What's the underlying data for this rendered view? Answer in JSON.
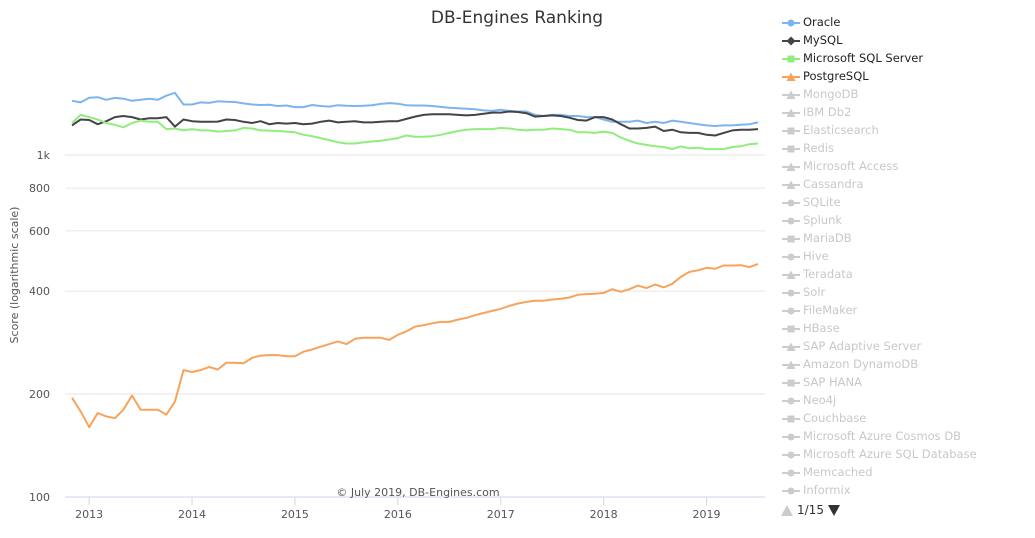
{
  "chart_data": {
    "type": "line",
    "title": "DB-Engines Ranking",
    "ylabel": "Score (logarithmic scale)",
    "yscale": "log",
    "ylim": [
      100,
      2000
    ],
    "yticks": [
      100,
      200,
      400,
      600,
      800,
      1000
    ],
    "ytick_labels": [
      "100",
      "200",
      "400",
      "600",
      "800",
      "1k"
    ],
    "xticks": [
      "2013",
      "2014",
      "2015",
      "2016",
      "2017",
      "2018",
      "2019"
    ],
    "xlim": [
      "2012-11",
      "2019-07"
    ],
    "grid": true,
    "legend_placement": "right",
    "credit": "© July 2019, DB-Engines.com",
    "x": [
      "2012-11",
      "2012-12",
      "2013-01",
      "2013-02",
      "2013-03",
      "2013-04",
      "2013-05",
      "2013-06",
      "2013-07",
      "2013-08",
      "2013-09",
      "2013-10",
      "2013-11",
      "2013-12",
      "2014-01",
      "2014-02",
      "2014-03",
      "2014-04",
      "2014-05",
      "2014-06",
      "2014-07",
      "2014-08",
      "2014-09",
      "2014-10",
      "2014-11",
      "2014-12",
      "2015-01",
      "2015-02",
      "2015-03",
      "2015-04",
      "2015-05",
      "2015-06",
      "2015-07",
      "2015-08",
      "2015-09",
      "2015-10",
      "2015-11",
      "2015-12",
      "2016-01",
      "2016-02",
      "2016-03",
      "2016-04",
      "2016-05",
      "2016-06",
      "2016-07",
      "2016-08",
      "2016-09",
      "2016-10",
      "2016-11",
      "2016-12",
      "2017-01",
      "2017-02",
      "2017-03",
      "2017-04",
      "2017-05",
      "2017-06",
      "2017-07",
      "2017-08",
      "2017-09",
      "2017-10",
      "2017-11",
      "2017-12",
      "2018-01",
      "2018-02",
      "2018-03",
      "2018-04",
      "2018-05",
      "2018-06",
      "2018-07",
      "2018-08",
      "2018-09",
      "2018-10",
      "2018-11",
      "2018-12",
      "2019-01",
      "2019-02",
      "2019-03",
      "2019-04",
      "2019-05",
      "2019-06",
      "2019-07"
    ],
    "series": [
      {
        "name": "Oracle",
        "color": "#7cb5ec",
        "marker": "circle",
        "visible": true,
        "values": [
          1440,
          1425,
          1470,
          1475,
          1450,
          1468,
          1460,
          1440,
          1450,
          1460,
          1450,
          1490,
          1520,
          1405,
          1405,
          1425,
          1420,
          1435,
          1430,
          1428,
          1415,
          1405,
          1400,
          1402,
          1390,
          1395,
          1380,
          1380,
          1400,
          1390,
          1385,
          1398,
          1393,
          1390,
          1392,
          1398,
          1410,
          1418,
          1412,
          1398,
          1395,
          1395,
          1390,
          1382,
          1375,
          1370,
          1365,
          1360,
          1350,
          1345,
          1355,
          1345,
          1340,
          1340,
          1310,
          1300,
          1310,
          1310,
          1300,
          1300,
          1290,
          1290,
          1270,
          1250,
          1250,
          1250,
          1260,
          1240,
          1250,
          1240,
          1260,
          1250,
          1240,
          1230,
          1220,
          1215,
          1220,
          1220,
          1225,
          1230,
          1245
        ]
      },
      {
        "name": "MySQL",
        "color": "#434348",
        "marker": "diamond",
        "visible": true,
        "values": [
          1220,
          1270,
          1265,
          1230,
          1255,
          1290,
          1300,
          1290,
          1270,
          1280,
          1280,
          1290,
          1210,
          1270,
          1255,
          1250,
          1250,
          1252,
          1270,
          1265,
          1250,
          1240,
          1255,
          1230,
          1240,
          1235,
          1240,
          1230,
          1235,
          1250,
          1260,
          1245,
          1250,
          1255,
          1245,
          1245,
          1250,
          1255,
          1255,
          1275,
          1295,
          1310,
          1315,
          1315,
          1315,
          1310,
          1305,
          1310,
          1320,
          1330,
          1330,
          1340,
          1335,
          1325,
          1295,
          1300,
          1305,
          1300,
          1285,
          1265,
          1260,
          1290,
          1290,
          1270,
          1230,
          1195,
          1195,
          1200,
          1210,
          1175,
          1185,
          1165,
          1160,
          1160,
          1145,
          1140,
          1160,
          1180,
          1185,
          1185,
          1190
        ]
      },
      {
        "name": "Microsoft SQL Server",
        "color": "#90ed7d",
        "marker": "square",
        "visible": true,
        "values": [
          1240,
          1310,
          1290,
          1270,
          1240,
          1225,
          1205,
          1240,
          1260,
          1250,
          1250,
          1190,
          1195,
          1180,
          1190,
          1180,
          1180,
          1170,
          1175,
          1180,
          1200,
          1195,
          1180,
          1178,
          1175,
          1170,
          1165,
          1145,
          1135,
          1120,
          1105,
          1090,
          1080,
          1080,
          1090,
          1095,
          1100,
          1110,
          1120,
          1140,
          1130,
          1130,
          1135,
          1145,
          1160,
          1175,
          1185,
          1190,
          1190,
          1190,
          1200,
          1195,
          1185,
          1180,
          1185,
          1185,
          1195,
          1190,
          1185,
          1165,
          1165,
          1160,
          1170,
          1160,
          1125,
          1100,
          1080,
          1070,
          1060,
          1055,
          1040,
          1060,
          1045,
          1050,
          1040,
          1040,
          1040,
          1055,
          1060,
          1075,
          1080
        ]
      },
      {
        "name": "PostgreSQL",
        "color": "#f7a35c",
        "marker": "triangle",
        "visible": true,
        "values": [
          195,
          178,
          160,
          176,
          172,
          170,
          180,
          198,
          180,
          180,
          180,
          174,
          190,
          235,
          232,
          235,
          240,
          236,
          247,
          247,
          246,
          255,
          259,
          260,
          260,
          258,
          258,
          266,
          270,
          275,
          280,
          285,
          280,
          290,
          292,
          292,
          292,
          288,
          298,
          305,
          315,
          318,
          322,
          325,
          325,
          330,
          334,
          340,
          345,
          350,
          355,
          362,
          368,
          372,
          375,
          375,
          378,
          380,
          383,
          390,
          392,
          393,
          395,
          405,
          398,
          405,
          415,
          408,
          418,
          410,
          420,
          440,
          455,
          460,
          468,
          465,
          475,
          475,
          476,
          470,
          480
        ]
      },
      {
        "name": "MongoDB",
        "marker": "triangle",
        "visible": false
      },
      {
        "name": "IBM Db2",
        "marker": "triangle",
        "visible": false
      },
      {
        "name": "Elasticsearch",
        "marker": "square",
        "visible": false
      },
      {
        "name": "Redis",
        "marker": "square",
        "visible": false
      },
      {
        "name": "Microsoft Access",
        "marker": "triangle",
        "visible": false
      },
      {
        "name": "Cassandra",
        "marker": "triangle",
        "visible": false
      },
      {
        "name": "SQLite",
        "marker": "circle",
        "visible": false
      },
      {
        "name": "Splunk",
        "marker": "circle",
        "visible": false
      },
      {
        "name": "MariaDB",
        "marker": "square",
        "visible": false
      },
      {
        "name": "Hive",
        "marker": "circle",
        "visible": false
      },
      {
        "name": "Teradata",
        "marker": "triangle",
        "visible": false
      },
      {
        "name": "Solr",
        "marker": "circle",
        "visible": false
      },
      {
        "name": "FileMaker",
        "marker": "circle",
        "visible": false
      },
      {
        "name": "HBase",
        "marker": "square",
        "visible": false
      },
      {
        "name": "SAP Adaptive Server",
        "marker": "triangle",
        "visible": false
      },
      {
        "name": "Amazon DynamoDB",
        "marker": "triangle",
        "visible": false
      },
      {
        "name": "SAP HANA",
        "marker": "square",
        "visible": false
      },
      {
        "name": "Neo4j",
        "marker": "circle",
        "visible": false
      },
      {
        "name": "Couchbase",
        "marker": "square",
        "visible": false
      },
      {
        "name": "Microsoft Azure Cosmos DB",
        "marker": "circle",
        "visible": false
      },
      {
        "name": "Microsoft Azure SQL Database",
        "marker": "circle",
        "visible": false
      },
      {
        "name": "Memcached",
        "marker": "circle",
        "visible": false
      },
      {
        "name": "Informix",
        "marker": "circle",
        "visible": false
      }
    ],
    "hidden_color": "#cccccc",
    "legend_pager": {
      "text": "1/15",
      "up_icon": "triangle-up-icon",
      "down_icon": "triangle-down-icon",
      "up_color": "#cccccc",
      "down_color": "#333333"
    }
  }
}
